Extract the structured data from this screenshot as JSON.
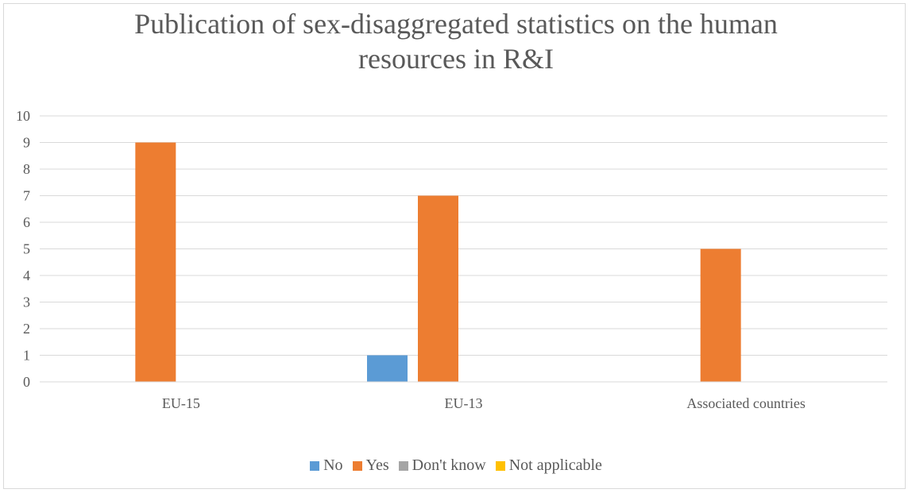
{
  "chart_data": {
    "type": "bar",
    "title": "Publication of sex-disaggregated statistics on the human resources in R&I",
    "title_lines": [
      "Publication of sex-disaggregated statistics on the human",
      "resources in R&I"
    ],
    "categories": [
      "EU-15",
      "EU-13",
      "Associated countries"
    ],
    "series": [
      {
        "name": "No",
        "color": "#5b9bd5",
        "values": [
          0,
          1,
          0
        ]
      },
      {
        "name": "Yes",
        "color": "#ed7d31",
        "values": [
          9,
          7,
          5
        ]
      },
      {
        "name": "Don't know",
        "color": "#a5a5a5",
        "values": [
          0,
          0,
          0
        ]
      },
      {
        "name": "Not applicable",
        "color": "#ffc000",
        "values": [
          0,
          0,
          0
        ]
      }
    ],
    "ylim": [
      0,
      10
    ],
    "yticks": [
      "0",
      "1",
      "2",
      "3",
      "4",
      "5",
      "6",
      "7",
      "8",
      "9",
      "10"
    ],
    "xlabel": "",
    "ylabel": "",
    "grid": true,
    "legend_position": "bottom"
  }
}
